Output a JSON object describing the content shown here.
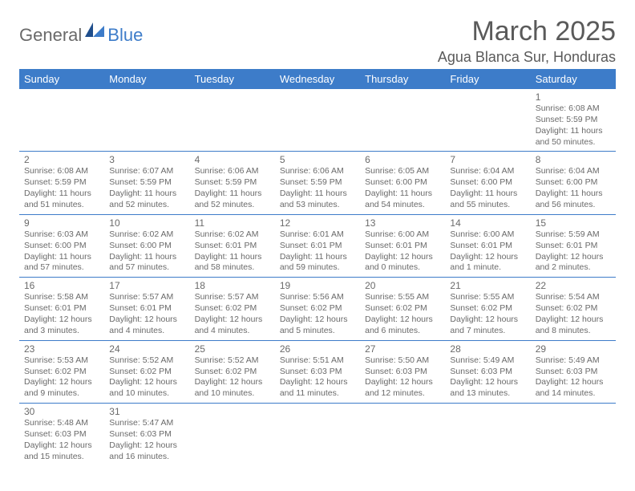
{
  "logo": {
    "general": "General",
    "blue": "Blue"
  },
  "title": "March 2025",
  "location": "Agua Blanca Sur, Honduras",
  "colors": {
    "header_bg": "#3d7cc9",
    "header_text": "#ffffff",
    "body_text": "#5a5a5a",
    "cell_text": "#6a6a6a",
    "border": "#3d7cc9",
    "background": "#ffffff"
  },
  "day_headers": [
    "Sunday",
    "Monday",
    "Tuesday",
    "Wednesday",
    "Thursday",
    "Friday",
    "Saturday"
  ],
  "weeks": [
    [
      null,
      null,
      null,
      null,
      null,
      null,
      {
        "n": "1",
        "sr": "Sunrise: 6:08 AM",
        "ss": "Sunset: 5:59 PM",
        "dl": "Daylight: 11 hours and 50 minutes."
      }
    ],
    [
      {
        "n": "2",
        "sr": "Sunrise: 6:08 AM",
        "ss": "Sunset: 5:59 PM",
        "dl": "Daylight: 11 hours and 51 minutes."
      },
      {
        "n": "3",
        "sr": "Sunrise: 6:07 AM",
        "ss": "Sunset: 5:59 PM",
        "dl": "Daylight: 11 hours and 52 minutes."
      },
      {
        "n": "4",
        "sr": "Sunrise: 6:06 AM",
        "ss": "Sunset: 5:59 PM",
        "dl": "Daylight: 11 hours and 52 minutes."
      },
      {
        "n": "5",
        "sr": "Sunrise: 6:06 AM",
        "ss": "Sunset: 5:59 PM",
        "dl": "Daylight: 11 hours and 53 minutes."
      },
      {
        "n": "6",
        "sr": "Sunrise: 6:05 AM",
        "ss": "Sunset: 6:00 PM",
        "dl": "Daylight: 11 hours and 54 minutes."
      },
      {
        "n": "7",
        "sr": "Sunrise: 6:04 AM",
        "ss": "Sunset: 6:00 PM",
        "dl": "Daylight: 11 hours and 55 minutes."
      },
      {
        "n": "8",
        "sr": "Sunrise: 6:04 AM",
        "ss": "Sunset: 6:00 PM",
        "dl": "Daylight: 11 hours and 56 minutes."
      }
    ],
    [
      {
        "n": "9",
        "sr": "Sunrise: 6:03 AM",
        "ss": "Sunset: 6:00 PM",
        "dl": "Daylight: 11 hours and 57 minutes."
      },
      {
        "n": "10",
        "sr": "Sunrise: 6:02 AM",
        "ss": "Sunset: 6:00 PM",
        "dl": "Daylight: 11 hours and 57 minutes."
      },
      {
        "n": "11",
        "sr": "Sunrise: 6:02 AM",
        "ss": "Sunset: 6:01 PM",
        "dl": "Daylight: 11 hours and 58 minutes."
      },
      {
        "n": "12",
        "sr": "Sunrise: 6:01 AM",
        "ss": "Sunset: 6:01 PM",
        "dl": "Daylight: 11 hours and 59 minutes."
      },
      {
        "n": "13",
        "sr": "Sunrise: 6:00 AM",
        "ss": "Sunset: 6:01 PM",
        "dl": "Daylight: 12 hours and 0 minutes."
      },
      {
        "n": "14",
        "sr": "Sunrise: 6:00 AM",
        "ss": "Sunset: 6:01 PM",
        "dl": "Daylight: 12 hours and 1 minute."
      },
      {
        "n": "15",
        "sr": "Sunrise: 5:59 AM",
        "ss": "Sunset: 6:01 PM",
        "dl": "Daylight: 12 hours and 2 minutes."
      }
    ],
    [
      {
        "n": "16",
        "sr": "Sunrise: 5:58 AM",
        "ss": "Sunset: 6:01 PM",
        "dl": "Daylight: 12 hours and 3 minutes."
      },
      {
        "n": "17",
        "sr": "Sunrise: 5:57 AM",
        "ss": "Sunset: 6:01 PM",
        "dl": "Daylight: 12 hours and 4 minutes."
      },
      {
        "n": "18",
        "sr": "Sunrise: 5:57 AM",
        "ss": "Sunset: 6:02 PM",
        "dl": "Daylight: 12 hours and 4 minutes."
      },
      {
        "n": "19",
        "sr": "Sunrise: 5:56 AM",
        "ss": "Sunset: 6:02 PM",
        "dl": "Daylight: 12 hours and 5 minutes."
      },
      {
        "n": "20",
        "sr": "Sunrise: 5:55 AM",
        "ss": "Sunset: 6:02 PM",
        "dl": "Daylight: 12 hours and 6 minutes."
      },
      {
        "n": "21",
        "sr": "Sunrise: 5:55 AM",
        "ss": "Sunset: 6:02 PM",
        "dl": "Daylight: 12 hours and 7 minutes."
      },
      {
        "n": "22",
        "sr": "Sunrise: 5:54 AM",
        "ss": "Sunset: 6:02 PM",
        "dl": "Daylight: 12 hours and 8 minutes."
      }
    ],
    [
      {
        "n": "23",
        "sr": "Sunrise: 5:53 AM",
        "ss": "Sunset: 6:02 PM",
        "dl": "Daylight: 12 hours and 9 minutes."
      },
      {
        "n": "24",
        "sr": "Sunrise: 5:52 AM",
        "ss": "Sunset: 6:02 PM",
        "dl": "Daylight: 12 hours and 10 minutes."
      },
      {
        "n": "25",
        "sr": "Sunrise: 5:52 AM",
        "ss": "Sunset: 6:02 PM",
        "dl": "Daylight: 12 hours and 10 minutes."
      },
      {
        "n": "26",
        "sr": "Sunrise: 5:51 AM",
        "ss": "Sunset: 6:03 PM",
        "dl": "Daylight: 12 hours and 11 minutes."
      },
      {
        "n": "27",
        "sr": "Sunrise: 5:50 AM",
        "ss": "Sunset: 6:03 PM",
        "dl": "Daylight: 12 hours and 12 minutes."
      },
      {
        "n": "28",
        "sr": "Sunrise: 5:49 AM",
        "ss": "Sunset: 6:03 PM",
        "dl": "Daylight: 12 hours and 13 minutes."
      },
      {
        "n": "29",
        "sr": "Sunrise: 5:49 AM",
        "ss": "Sunset: 6:03 PM",
        "dl": "Daylight: 12 hours and 14 minutes."
      }
    ],
    [
      {
        "n": "30",
        "sr": "Sunrise: 5:48 AM",
        "ss": "Sunset: 6:03 PM",
        "dl": "Daylight: 12 hours and 15 minutes."
      },
      {
        "n": "31",
        "sr": "Sunrise: 5:47 AM",
        "ss": "Sunset: 6:03 PM",
        "dl": "Daylight: 12 hours and 16 minutes."
      },
      null,
      null,
      null,
      null,
      null
    ]
  ]
}
